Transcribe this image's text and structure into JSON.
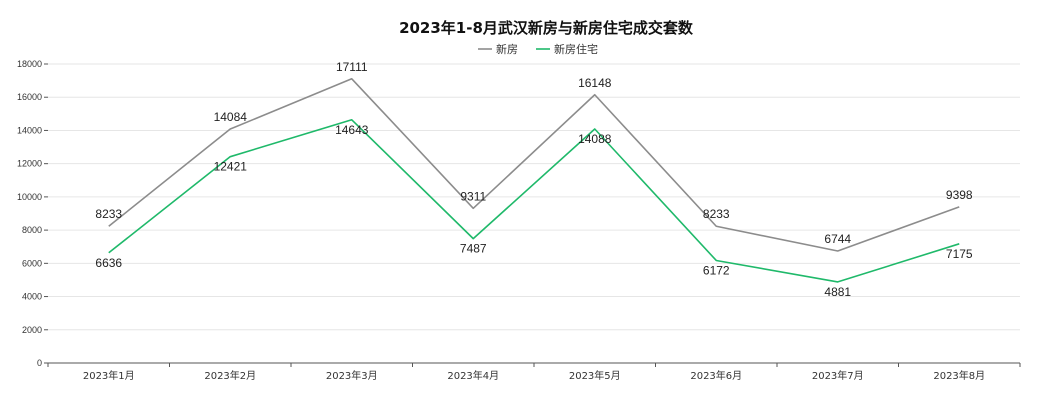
{
  "chart_data": {
    "type": "line",
    "title": "2023年1-8月武汉新房与新房住宅成交套数",
    "categories": [
      "2023年1月",
      "2023年2月",
      "2023年3月",
      "2023年4月",
      "2023年5月",
      "2023年6月",
      "2023年7月",
      "2023年8月"
    ],
    "ylim": [
      0,
      18000
    ],
    "yticks": [
      0,
      2000,
      4000,
      6000,
      8000,
      10000,
      12000,
      14000,
      16000,
      18000
    ],
    "grid": true,
    "legend_position": "top-center",
    "series": [
      {
        "name": "新房",
        "color": "#8c8c8c",
        "values": [
          8233,
          14084,
          17111,
          9311,
          16148,
          8233,
          6744,
          9398
        ]
      },
      {
        "name": "新房住宅",
        "color": "#1fb96a",
        "values": [
          6636,
          12421,
          14643,
          7487,
          14088,
          6172,
          4881,
          7175
        ]
      }
    ]
  }
}
